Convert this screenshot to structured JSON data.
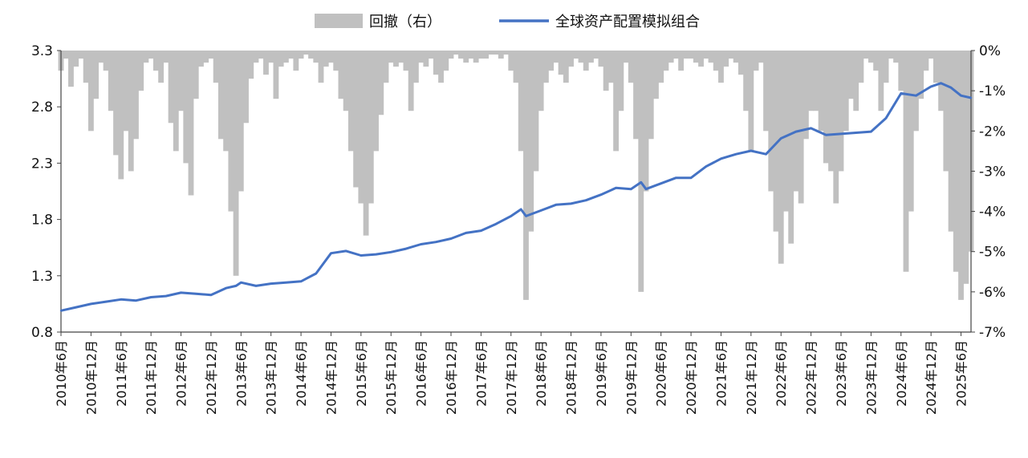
{
  "chart_data": {
    "type": "line",
    "legend": {
      "position": "top-center",
      "entries": [
        {
          "label": "回撤（右）",
          "kind": "area",
          "color": "#c0c0c0"
        },
        {
          "label": "全球资产配置模拟组合",
          "kind": "line",
          "color": "#4472c4"
        }
      ]
    },
    "x_axis": {
      "tick_labels": [
        "2010年6月",
        "2010年12月",
        "2011年6月",
        "2011年12月",
        "2012年6月",
        "2012年12月",
        "2013年6月",
        "2013年12月",
        "2014年6月",
        "2014年12月",
        "2015年6月",
        "2015年12月",
        "2016年6月",
        "2016年12月",
        "2017年6月",
        "2017年12月",
        "2018年6月",
        "2018年12月",
        "2019年6月",
        "2019年12月",
        "2020年6月",
        "2020年12月",
        "2021年6月",
        "2021年12月",
        "2022年6月",
        "2022年12月",
        "2023年6月",
        "2023年12月",
        "2024年6月",
        "2024年12月",
        "2025年6月"
      ],
      "range": [
        "2010-06",
        "2025-08"
      ]
    },
    "y_left": {
      "ticks": [
        "0.8",
        "1.3",
        "1.8",
        "2.3",
        "2.8",
        "3.3"
      ],
      "range": [
        0.8,
        3.3
      ]
    },
    "y_right": {
      "ticks": [
        "0%",
        "-1%",
        "-2%",
        "-3%",
        "-4%",
        "-5%",
        "-6%",
        "-7%"
      ],
      "range": [
        -7,
        0
      ]
    },
    "grid": false,
    "series": [
      {
        "name": "全球资产配置模拟组合",
        "axis": "left",
        "color": "#4472c4",
        "x": [
          "2010-06",
          "2010-09",
          "2010-12",
          "2011-03",
          "2011-06",
          "2011-09",
          "2011-12",
          "2012-03",
          "2012-06",
          "2012-09",
          "2012-12",
          "2013-03",
          "2013-05",
          "2013-06",
          "2013-09",
          "2013-12",
          "2014-03",
          "2014-06",
          "2014-09",
          "2014-12",
          "2015-03",
          "2015-06",
          "2015-09",
          "2015-12",
          "2016-03",
          "2016-06",
          "2016-09",
          "2016-12",
          "2017-03",
          "2017-06",
          "2017-09",
          "2017-12",
          "2018-02",
          "2018-03",
          "2018-06",
          "2018-09",
          "2018-12",
          "2019-03",
          "2019-06",
          "2019-09",
          "2019-12",
          "2020-02",
          "2020-03",
          "2020-06",
          "2020-09",
          "2020-12",
          "2021-03",
          "2021-06",
          "2021-09",
          "2021-12",
          "2022-03",
          "2022-06",
          "2022-09",
          "2022-12",
          "2023-03",
          "2023-06",
          "2023-09",
          "2023-12",
          "2024-03",
          "2024-06",
          "2024-09",
          "2024-12",
          "2025-02",
          "2025-04",
          "2025-06",
          "2025-08"
        ],
        "values": [
          0.99,
          1.02,
          1.05,
          1.07,
          1.09,
          1.08,
          1.11,
          1.12,
          1.15,
          1.14,
          1.13,
          1.19,
          1.21,
          1.24,
          1.21,
          1.23,
          1.24,
          1.25,
          1.32,
          1.5,
          1.52,
          1.48,
          1.49,
          1.51,
          1.54,
          1.58,
          1.6,
          1.63,
          1.68,
          1.7,
          1.76,
          1.83,
          1.89,
          1.83,
          1.88,
          1.93,
          1.94,
          1.97,
          2.02,
          2.08,
          2.07,
          2.13,
          2.07,
          2.12,
          2.17,
          2.17,
          2.27,
          2.34,
          2.38,
          2.41,
          2.38,
          2.52,
          2.58,
          2.61,
          2.55,
          2.56,
          2.57,
          2.58,
          2.7,
          2.92,
          2.9,
          2.98,
          3.01,
          2.97,
          2.9,
          2.88
        ]
      },
      {
        "name": "回撤（右）",
        "axis": "right",
        "color": "#c0c0c0",
        "x": [
          "2010-06",
          "2010-07",
          "2010-08",
          "2010-09",
          "2010-10",
          "2010-11",
          "2010-12",
          "2011-01",
          "2011-02",
          "2011-03",
          "2011-04",
          "2011-05",
          "2011-06",
          "2011-07",
          "2011-08",
          "2011-09",
          "2011-10",
          "2011-11",
          "2011-12",
          "2012-01",
          "2012-02",
          "2012-03",
          "2012-04",
          "2012-05",
          "2012-06",
          "2012-07",
          "2012-08",
          "2012-09",
          "2012-10",
          "2012-11",
          "2012-12",
          "2013-01",
          "2013-02",
          "2013-03",
          "2013-04",
          "2013-05",
          "2013-06",
          "2013-07",
          "2013-08",
          "2013-09",
          "2013-10",
          "2013-11",
          "2013-12",
          "2014-01",
          "2014-02",
          "2014-03",
          "2014-04",
          "2014-05",
          "2014-06",
          "2014-07",
          "2014-08",
          "2014-09",
          "2014-10",
          "2014-11",
          "2014-12",
          "2015-01",
          "2015-02",
          "2015-03",
          "2015-04",
          "2015-05",
          "2015-06",
          "2015-07",
          "2015-08",
          "2015-09",
          "2015-10",
          "2015-11",
          "2015-12",
          "2016-01",
          "2016-02",
          "2016-03",
          "2016-04",
          "2016-05",
          "2016-06",
          "2016-07",
          "2016-08",
          "2016-09",
          "2016-10",
          "2016-11",
          "2016-12",
          "2017-01",
          "2017-02",
          "2017-03",
          "2017-04",
          "2017-05",
          "2017-06",
          "2017-07",
          "2017-08",
          "2017-09",
          "2017-10",
          "2017-11",
          "2017-12",
          "2018-01",
          "2018-02",
          "2018-03",
          "2018-04",
          "2018-05",
          "2018-06",
          "2018-07",
          "2018-08",
          "2018-09",
          "2018-10",
          "2018-11",
          "2018-12",
          "2019-01",
          "2019-02",
          "2019-03",
          "2019-04",
          "2019-05",
          "2019-06",
          "2019-07",
          "2019-08",
          "2019-09",
          "2019-10",
          "2019-11",
          "2019-12",
          "2020-01",
          "2020-02",
          "2020-03",
          "2020-04",
          "2020-05",
          "2020-06",
          "2020-07",
          "2020-08",
          "2020-09",
          "2020-10",
          "2020-11",
          "2020-12",
          "2021-01",
          "2021-02",
          "2021-03",
          "2021-04",
          "2021-05",
          "2021-06",
          "2021-07",
          "2021-08",
          "2021-09",
          "2021-10",
          "2021-11",
          "2021-12",
          "2022-01",
          "2022-02",
          "2022-03",
          "2022-04",
          "2022-05",
          "2022-06",
          "2022-07",
          "2022-08",
          "2022-09",
          "2022-10",
          "2022-11",
          "2022-12",
          "2023-01",
          "2023-02",
          "2023-03",
          "2023-04",
          "2023-05",
          "2023-06",
          "2023-07",
          "2023-08",
          "2023-09",
          "2023-10",
          "2023-11",
          "2023-12",
          "2024-01",
          "2024-02",
          "2024-03",
          "2024-04",
          "2024-05",
          "2024-06",
          "2024-07",
          "2024-08",
          "2024-09",
          "2024-10",
          "2024-11",
          "2024-12",
          "2025-01",
          "2025-02",
          "2025-03",
          "2025-04",
          "2025-05",
          "2025-06",
          "2025-07",
          "2025-08"
        ],
        "values": [
          -0.5,
          -0.2,
          -0.9,
          -0.4,
          -0.2,
          -0.8,
          -2.0,
          -1.2,
          -0.3,
          -0.5,
          -1.5,
          -2.6,
          -3.2,
          -2.0,
          -3.0,
          -2.2,
          -1.0,
          -0.3,
          -0.2,
          -0.5,
          -0.8,
          -0.3,
          -1.8,
          -2.5,
          -1.5,
          -2.8,
          -3.6,
          -1.2,
          -0.4,
          -0.3,
          -0.2,
          -0.8,
          -2.2,
          -2.5,
          -4.0,
          -5.6,
          -3.5,
          -1.8,
          -0.7,
          -0.3,
          -0.2,
          -0.6,
          -0.3,
          -1.2,
          -0.4,
          -0.3,
          -0.2,
          -0.5,
          -0.2,
          -0.1,
          -0.2,
          -0.3,
          -0.8,
          -0.4,
          -0.3,
          -0.5,
          -1.2,
          -1.5,
          -2.5,
          -3.4,
          -3.8,
          -4.6,
          -3.8,
          -2.5,
          -1.6,
          -0.8,
          -0.3,
          -0.4,
          -0.3,
          -0.5,
          -1.5,
          -0.8,
          -0.3,
          -0.4,
          -0.2,
          -0.6,
          -0.8,
          -0.5,
          -0.2,
          -0.1,
          -0.2,
          -0.3,
          -0.2,
          -0.3,
          -0.2,
          -0.2,
          -0.1,
          -0.1,
          -0.2,
          -0.1,
          -0.5,
          -0.8,
          -2.5,
          -6.2,
          -4.5,
          -3.0,
          -1.5,
          -0.8,
          -0.5,
          -0.3,
          -0.6,
          -0.8,
          -0.4,
          -0.2,
          -0.3,
          -0.5,
          -0.3,
          -0.2,
          -0.4,
          -1.0,
          -0.8,
          -2.5,
          -1.5,
          -0.3,
          -0.8,
          -2.2,
          -6.0,
          -3.5,
          -2.2,
          -1.2,
          -0.8,
          -0.5,
          -0.3,
          -0.2,
          -0.5,
          -0.2,
          -0.2,
          -0.3,
          -0.4,
          -0.2,
          -0.3,
          -0.5,
          -0.8,
          -0.4,
          -0.2,
          -0.3,
          -0.6,
          -1.5,
          -2.5,
          -0.5,
          -0.3,
          -2.0,
          -3.5,
          -4.5,
          -5.3,
          -4.0,
          -4.8,
          -3.5,
          -3.8,
          -2.2,
          -1.5,
          -1.5,
          -2.0,
          -2.8,
          -3.0,
          -3.8,
          -3.0,
          -2.0,
          -1.2,
          -1.5,
          -0.8,
          -0.2,
          -0.3,
          -0.5,
          -1.5,
          -0.8,
          -0.2,
          -0.3,
          -1.0,
          -5.5,
          -4.0,
          -2.0,
          -1.2,
          -0.5,
          -0.2,
          -0.8,
          -1.5,
          -3.0,
          -4.5,
          -5.5,
          -6.2,
          -5.8,
          -5.0
        ]
      }
    ]
  }
}
